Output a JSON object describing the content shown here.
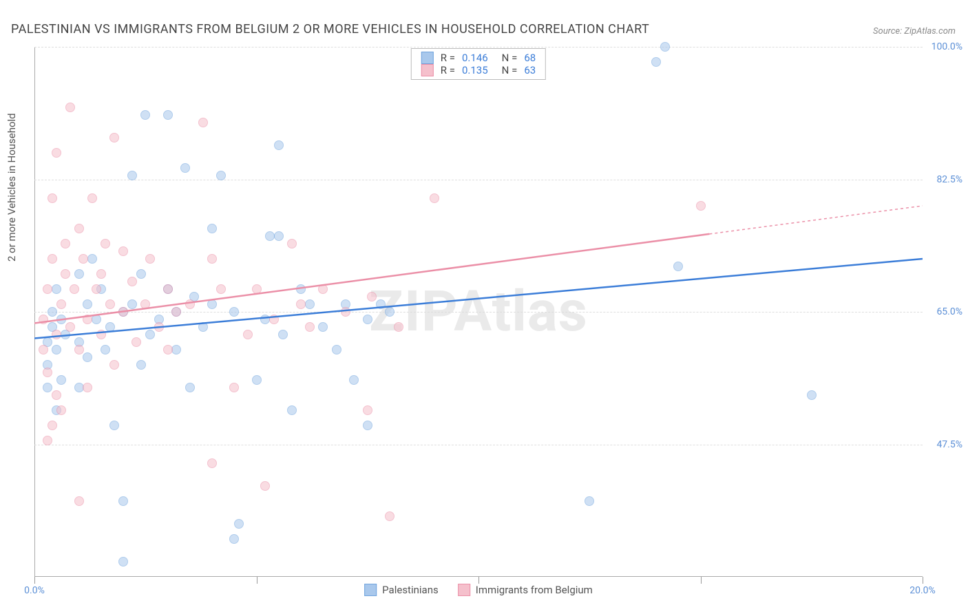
{
  "title": "PALESTINIAN VS IMMIGRANTS FROM BELGIUM 2 OR MORE VEHICLES IN HOUSEHOLD CORRELATION CHART",
  "source": "Source: ZipAtlas.com",
  "watermark": "ZIPAtlas",
  "y_axis_label": "2 or more Vehicles in Household",
  "chart": {
    "type": "scatter",
    "xlim": [
      0.0,
      20.0
    ],
    "ylim": [
      30.0,
      100.0
    ],
    "x_ticks": [
      0.0,
      5.0,
      10.0,
      15.0,
      20.0
    ],
    "x_tick_labels": [
      "0.0%",
      "",
      "",
      "",
      "20.0%"
    ],
    "y_ticks": [
      47.5,
      65.0,
      82.5,
      100.0
    ],
    "y_tick_labels": [
      "47.5%",
      "65.0%",
      "82.5%",
      "100.0%"
    ],
    "grid_color": "#dddddd",
    "background_color": "#ffffff",
    "axis_label_color": "#5b8fd6",
    "marker_radius": 7,
    "marker_opacity": 0.55
  },
  "series": [
    {
      "name": "Palestinians",
      "color_fill": "#a9c8ec",
      "color_stroke": "#6fa3dd",
      "r_value": "0.146",
      "n_value": "68",
      "trend": {
        "x1": 0,
        "y1": 61.5,
        "x2": 20,
        "y2": 72.0,
        "color": "#3b7dd8",
        "width": 2.5
      },
      "points": [
        [
          0.3,
          61
        ],
        [
          0.3,
          58
        ],
        [
          0.3,
          55
        ],
        [
          0.4,
          65
        ],
        [
          0.4,
          63
        ],
        [
          0.5,
          60
        ],
        [
          0.5,
          68
        ],
        [
          0.6,
          64
        ],
        [
          0.6,
          56
        ],
        [
          0.7,
          62
        ],
        [
          1.0,
          70
        ],
        [
          1.0,
          61
        ],
        [
          1.2,
          66
        ],
        [
          1.2,
          59
        ],
        [
          1.3,
          72
        ],
        [
          1.4,
          64
        ],
        [
          1.5,
          68
        ],
        [
          1.6,
          60
        ],
        [
          1.7,
          63
        ],
        [
          1.8,
          50
        ],
        [
          2.0,
          65
        ],
        [
          2.0,
          40
        ],
        [
          2.0,
          32
        ],
        [
          2.2,
          83
        ],
        [
          2.2,
          66
        ],
        [
          2.4,
          58
        ],
        [
          2.4,
          70
        ],
        [
          2.5,
          91
        ],
        [
          2.6,
          62
        ],
        [
          2.8,
          64
        ],
        [
          3.0,
          68
        ],
        [
          3.2,
          65
        ],
        [
          3.2,
          60
        ],
        [
          3.4,
          84
        ],
        [
          3.5,
          55
        ],
        [
          3.6,
          67
        ],
        [
          3.8,
          63
        ],
        [
          4.0,
          66
        ],
        [
          4.0,
          76
        ],
        [
          4.2,
          83
        ],
        [
          4.5,
          35
        ],
        [
          4.5,
          65
        ],
        [
          4.6,
          37
        ],
        [
          5.0,
          56
        ],
        [
          5.2,
          64
        ],
        [
          5.3,
          75
        ],
        [
          5.5,
          87
        ],
        [
          5.6,
          62
        ],
        [
          5.8,
          52
        ],
        [
          6.0,
          68
        ],
        [
          6.2,
          66
        ],
        [
          6.5,
          63
        ],
        [
          6.8,
          60
        ],
        [
          7.0,
          66
        ],
        [
          7.2,
          56
        ],
        [
          7.5,
          64
        ],
        [
          7.5,
          50
        ],
        [
          7.8,
          66
        ],
        [
          8.0,
          65
        ],
        [
          12.5,
          40
        ],
        [
          14.2,
          100
        ],
        [
          14.5,
          71
        ],
        [
          17.5,
          54
        ],
        [
          14.0,
          98
        ],
        [
          3.0,
          91
        ],
        [
          5.5,
          75
        ],
        [
          1.0,
          55
        ],
        [
          0.5,
          52
        ]
      ]
    },
    {
      "name": "Immigrants from Belgium",
      "color_fill": "#f5c0cc",
      "color_stroke": "#eb8fa7",
      "r_value": "0.135",
      "n_value": "63",
      "trend": {
        "x1": 0,
        "y1": 63.5,
        "x2": 20,
        "y2": 79.0,
        "color": "#eb8fa7",
        "width": 2.5,
        "dash_after_x": 15.2
      },
      "points": [
        [
          0.2,
          60
        ],
        [
          0.2,
          64
        ],
        [
          0.3,
          57
        ],
        [
          0.3,
          68
        ],
        [
          0.4,
          80
        ],
        [
          0.4,
          72
        ],
        [
          0.5,
          62
        ],
        [
          0.5,
          86
        ],
        [
          0.6,
          66
        ],
        [
          0.6,
          52
        ],
        [
          0.7,
          70
        ],
        [
          0.7,
          74
        ],
        [
          0.8,
          92
        ],
        [
          0.8,
          63
        ],
        [
          0.9,
          68
        ],
        [
          1.0,
          76
        ],
        [
          1.0,
          60
        ],
        [
          1.0,
          40
        ],
        [
          1.1,
          72
        ],
        [
          1.2,
          64
        ],
        [
          1.3,
          80
        ],
        [
          1.4,
          68
        ],
        [
          1.5,
          62
        ],
        [
          1.5,
          70
        ],
        [
          1.6,
          74
        ],
        [
          1.7,
          66
        ],
        [
          1.8,
          88
        ],
        [
          1.8,
          58
        ],
        [
          2.0,
          73
        ],
        [
          2.0,
          65
        ],
        [
          2.2,
          69
        ],
        [
          2.3,
          61
        ],
        [
          2.5,
          66
        ],
        [
          2.6,
          72
        ],
        [
          2.8,
          63
        ],
        [
          3.0,
          68
        ],
        [
          3.0,
          60
        ],
        [
          3.2,
          65
        ],
        [
          3.5,
          66
        ],
        [
          3.8,
          90
        ],
        [
          4.0,
          72
        ],
        [
          4.0,
          45
        ],
        [
          4.2,
          68
        ],
        [
          4.5,
          55
        ],
        [
          4.8,
          62
        ],
        [
          5.0,
          68
        ],
        [
          5.2,
          42
        ],
        [
          5.4,
          64
        ],
        [
          5.8,
          74
        ],
        [
          6.0,
          66
        ],
        [
          6.2,
          63
        ],
        [
          6.5,
          68
        ],
        [
          7.0,
          65
        ],
        [
          7.5,
          52
        ],
        [
          7.6,
          67
        ],
        [
          8.0,
          38
        ],
        [
          8.2,
          63
        ],
        [
          9.0,
          80
        ],
        [
          1.2,
          55
        ],
        [
          0.5,
          54
        ],
        [
          0.4,
          50
        ],
        [
          0.3,
          48
        ],
        [
          15.0,
          79
        ]
      ]
    }
  ],
  "legend_bottom": {
    "items": [
      {
        "label": "Palestinians",
        "fill": "#a9c8ec",
        "stroke": "#6fa3dd"
      },
      {
        "label": "Immigrants from Belgium",
        "fill": "#f5c0cc",
        "stroke": "#eb8fa7"
      }
    ]
  }
}
